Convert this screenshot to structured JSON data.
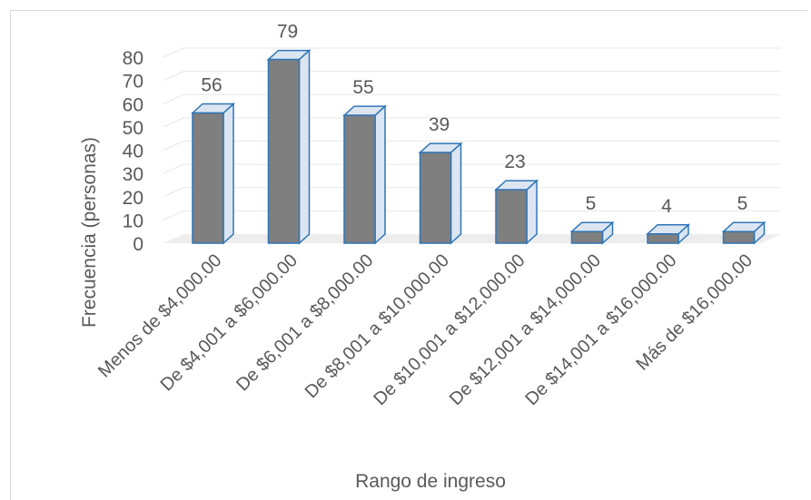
{
  "chart_data": {
    "type": "bar",
    "title": "",
    "xlabel": "Rango de ingreso",
    "ylabel": "Frecuencia (personas)",
    "ylim": [
      0,
      80
    ],
    "yticks": [
      0,
      10,
      20,
      30,
      40,
      50,
      60,
      70,
      80
    ],
    "grid": true,
    "style": "3d-column",
    "colors": {
      "bar_front": "#7f7f7f",
      "bar_side": "#dce6f2",
      "bar_edge": "#2e75b6",
      "grid": "#e7e7e7",
      "floor": "#ededed"
    },
    "categories": [
      "Menos de $4,000.00",
      "De $4,001 a $6,000.00",
      "De $6,001 a $8,000.00",
      "De $8,001 a $10,000.00",
      "De $10,001 a $12,000.00",
      "De $12,001 a $14,000.00",
      "De $14,001 a $16,000.00",
      "Más de $16,000.00"
    ],
    "values": [
      56,
      79,
      55,
      39,
      23,
      5,
      4,
      5
    ]
  }
}
